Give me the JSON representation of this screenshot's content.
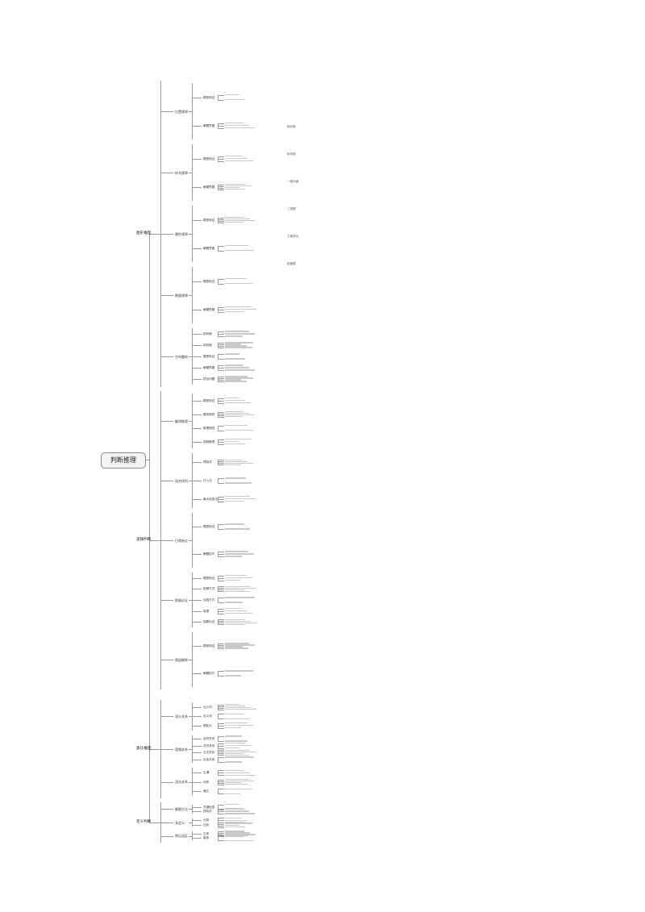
{
  "root": "判断推理",
  "branches": [
    {
      "label": "图形推理",
      "children": [
        {
          "label": "位置规律",
          "children": [
            "题型特征",
            "解题思路"
          ]
        },
        {
          "label": "样式规律",
          "children": [
            "题型特征",
            "解题思路"
          ]
        },
        {
          "label": "属性规律",
          "children": [
            "题型特征",
            "解题思路"
          ]
        },
        {
          "label": "数量规律",
          "children": [
            "题型特征",
            "解题思路"
          ]
        },
        {
          "label": "空间重构",
          "children": [
            "相对面",
            "相邻面",
            "题型特征",
            "解题思路",
            "拼合问题"
          ]
        }
      ]
    },
    {
      "label": "逻辑判断",
      "children": [
        {
          "label": "翻译推理",
          "children": [
            "题型特征",
            "翻译规则",
            "推理规则",
            "真假推理"
          ]
        },
        {
          "label": "组合排列",
          "children": [
            "排除法",
            "代入法",
            "最大信息法"
          ]
        },
        {
          "label": "日常结论",
          "children": [
            "题型特征",
            "解题技巧"
          ]
        },
        {
          "label": "削弱论证",
          "children": [
            "题型特征",
            "削弱方式",
            "加强方式",
            "前提",
            "因果论证"
          ]
        },
        {
          "label": "原因解释",
          "children": [
            "题型特征",
            "解题技巧"
          ]
        }
      ]
    },
    {
      "label": "类比推理",
      "children": [
        {
          "label": "语义关系",
          "children": [
            "近义词",
            "反义词",
            "褒贬义"
          ]
        },
        {
          "label": "逻辑关系",
          "children": [
            "全同关系",
            "并列关系",
            "交叉关系",
            "包含关系"
          ]
        },
        {
          "label": "语法关系",
          "children": [
            "主谓",
            "动宾",
            "偏正"
          ]
        }
      ]
    },
    {
      "label": "定义判断",
      "children": [
        {
          "label": "解题方法",
          "children": [
            "关键信息",
            "排除法"
          ]
        },
        {
          "label": "多定义",
          "children": [
            "分类",
            "比较"
          ]
        },
        {
          "label": "常见误区",
          "children": [
            "主体",
            "客体"
          ]
        }
      ]
    }
  ],
  "annotations": [
    "相对面",
    "相邻面",
    "一组对面",
    "三视图",
    "立体拼合",
    "剖面图"
  ]
}
